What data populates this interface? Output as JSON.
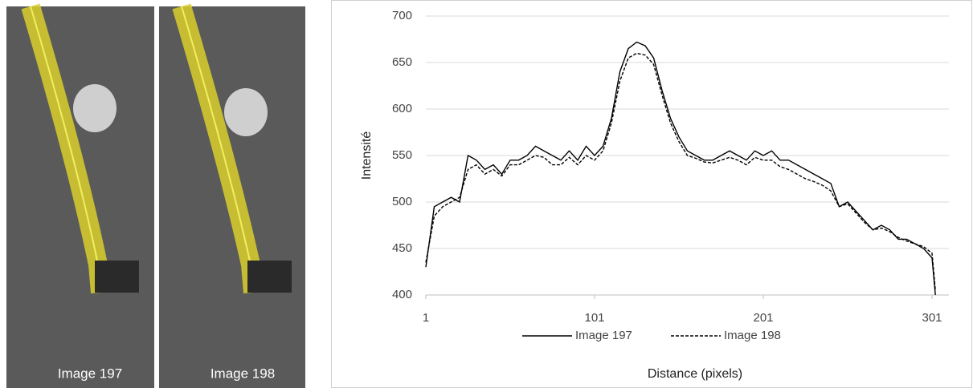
{
  "images": [
    {
      "caption": "Image 197"
    },
    {
      "caption": "Image 198"
    }
  ],
  "chart_data": {
    "type": "line",
    "x_label": "Distance (pixels)",
    "y_label": "Intensité",
    "x": [
      1,
      6,
      11,
      16,
      21,
      26,
      31,
      36,
      41,
      46,
      51,
      56,
      61,
      66,
      71,
      76,
      81,
      86,
      91,
      96,
      101,
      106,
      111,
      116,
      121,
      126,
      131,
      136,
      141,
      146,
      151,
      156,
      161,
      166,
      171,
      176,
      181,
      186,
      191,
      196,
      201,
      206,
      211,
      216,
      221,
      226,
      231,
      236,
      241,
      246,
      251,
      256,
      261,
      266,
      271,
      276,
      281,
      286,
      291,
      296,
      301,
      303
    ],
    "series": [
      {
        "name": "Image 197",
        "color": "#000000",
        "linestyle": "solid",
        "values": [
          430,
          495,
          500,
          505,
          500,
          550,
          545,
          535,
          540,
          530,
          545,
          545,
          550,
          560,
          555,
          550,
          545,
          555,
          545,
          560,
          550,
          560,
          590,
          640,
          665,
          672,
          668,
          655,
          620,
          590,
          570,
          555,
          550,
          545,
          545,
          550,
          555,
          550,
          545,
          555,
          550,
          555,
          545,
          545,
          540,
          535,
          530,
          525,
          520,
          495,
          500,
          490,
          480,
          470,
          475,
          470,
          460,
          460,
          455,
          450,
          440,
          400
        ]
      },
      {
        "name": "Image 198",
        "color": "#000000",
        "linestyle": "dashed",
        "values": [
          435,
          485,
          495,
          500,
          505,
          535,
          540,
          530,
          535,
          528,
          540,
          540,
          545,
          550,
          548,
          540,
          540,
          548,
          540,
          550,
          545,
          555,
          585,
          630,
          655,
          660,
          658,
          648,
          615,
          585,
          565,
          550,
          547,
          543,
          542,
          545,
          548,
          545,
          540,
          548,
          545,
          545,
          538,
          535,
          530,
          525,
          522,
          518,
          512,
          495,
          498,
          488,
          478,
          470,
          472,
          468,
          462,
          458,
          455,
          452,
          445,
          405
        ]
      }
    ],
    "xlim": [
      1,
      311
    ],
    "xticks": [
      1,
      101,
      201,
      301
    ],
    "ylim": [
      400,
      700
    ],
    "yticks": [
      400,
      450,
      500,
      550,
      600,
      650,
      700
    ],
    "grid": true,
    "legend": "bottom"
  }
}
